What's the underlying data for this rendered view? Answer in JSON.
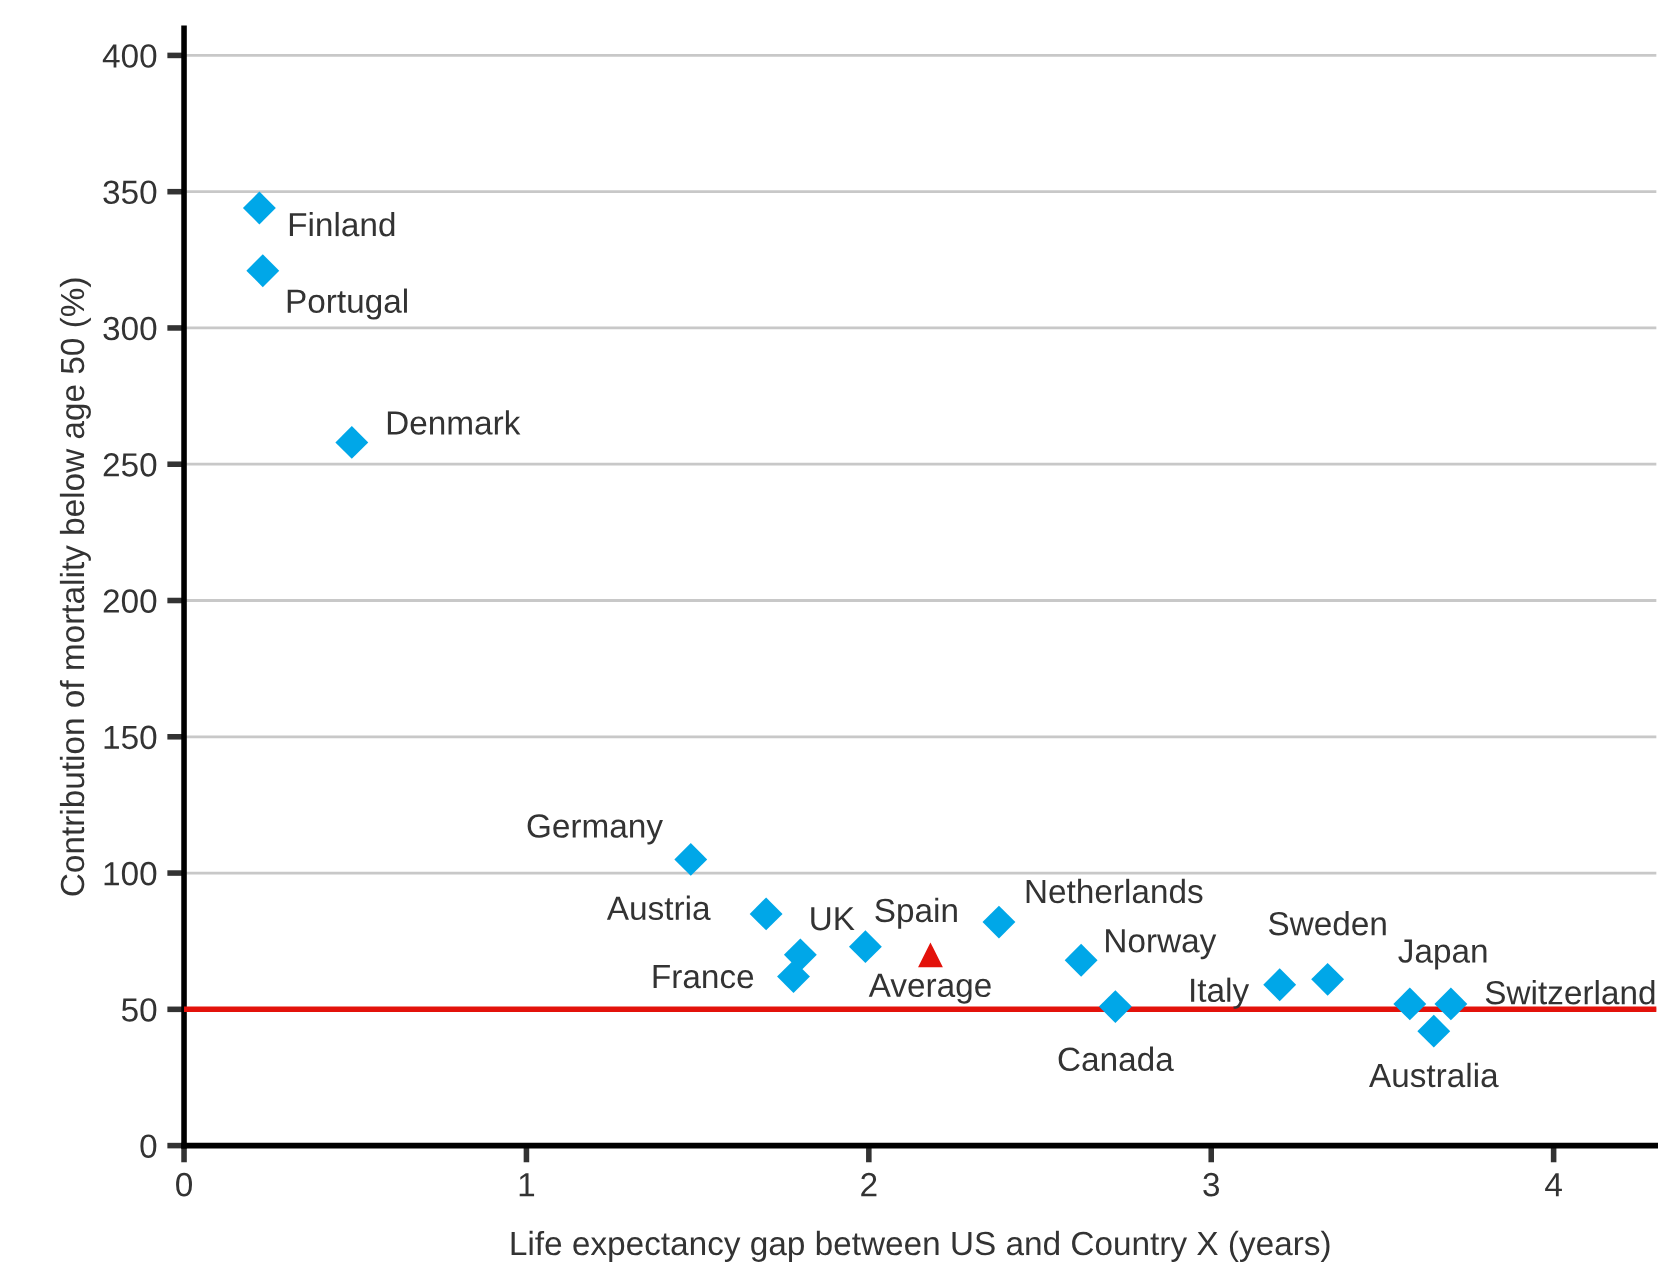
{
  "chart_data": {
    "type": "scatter",
    "xlabel": "Life expectancy gap between US and Country X (years)",
    "ylabel": "Contribution of mortality below age 50 (%)",
    "xlim": [
      0,
      4.3
    ],
    "ylim": [
      0,
      410
    ],
    "xticks": [
      0,
      1,
      2,
      3,
      4
    ],
    "yticks": [
      0,
      50,
      100,
      150,
      200,
      250,
      300,
      350,
      400
    ],
    "grid": "y",
    "series": [
      {
        "color": "#00a7e8",
        "marker": "diamond",
        "x": [
          0.22,
          0.23,
          0.49,
          1.48,
          1.7,
          1.8,
          1.78,
          1.99,
          2.38,
          2.62,
          2.72,
          3.2,
          3.34,
          3.58,
          3.7,
          3.65
        ],
        "values": [
          344,
          321,
          258,
          105,
          85,
          70,
          62,
          73,
          82,
          68,
          51,
          59,
          61,
          52,
          52,
          42
        ]
      },
      {
        "color": "#e3120b",
        "marker": "triangle",
        "x": [
          2.18
        ],
        "values": [
          70
        ]
      }
    ],
    "ref_lines": [
      {
        "axis": "y",
        "value": 50,
        "color": "#e3120b"
      }
    ],
    "annotations": [
      {
        "text": "Finland",
        "x": 0.22,
        "y": 344
      },
      {
        "text": "Portugal",
        "x": 0.23,
        "y": 321
      },
      {
        "text": "Denmark",
        "x": 0.49,
        "y": 258
      },
      {
        "text": "Germany",
        "x": 1.48,
        "y": 105
      },
      {
        "text": "Austria",
        "x": 1.7,
        "y": 85
      },
      {
        "text": "UK",
        "x": 1.8,
        "y": 70
      },
      {
        "text": "France",
        "x": 1.78,
        "y": 62
      },
      {
        "text": "Spain",
        "x": 1.99,
        "y": 73
      },
      {
        "text": "Netherlands",
        "x": 2.38,
        "y": 82
      },
      {
        "text": "Norway",
        "x": 2.62,
        "y": 68
      },
      {
        "text": "Canada",
        "x": 2.72,
        "y": 51
      },
      {
        "text": "Italy",
        "x": 3.2,
        "y": 59
      },
      {
        "text": "Sweden",
        "x": 3.34,
        "y": 61
      },
      {
        "text": "Japan",
        "x": 3.58,
        "y": 52
      },
      {
        "text": "Switzerland",
        "x": 3.7,
        "y": 52
      },
      {
        "text": "Australia",
        "x": 3.65,
        "y": 42
      },
      {
        "text": "Average",
        "x": 2.18,
        "y": 70
      }
    ]
  }
}
